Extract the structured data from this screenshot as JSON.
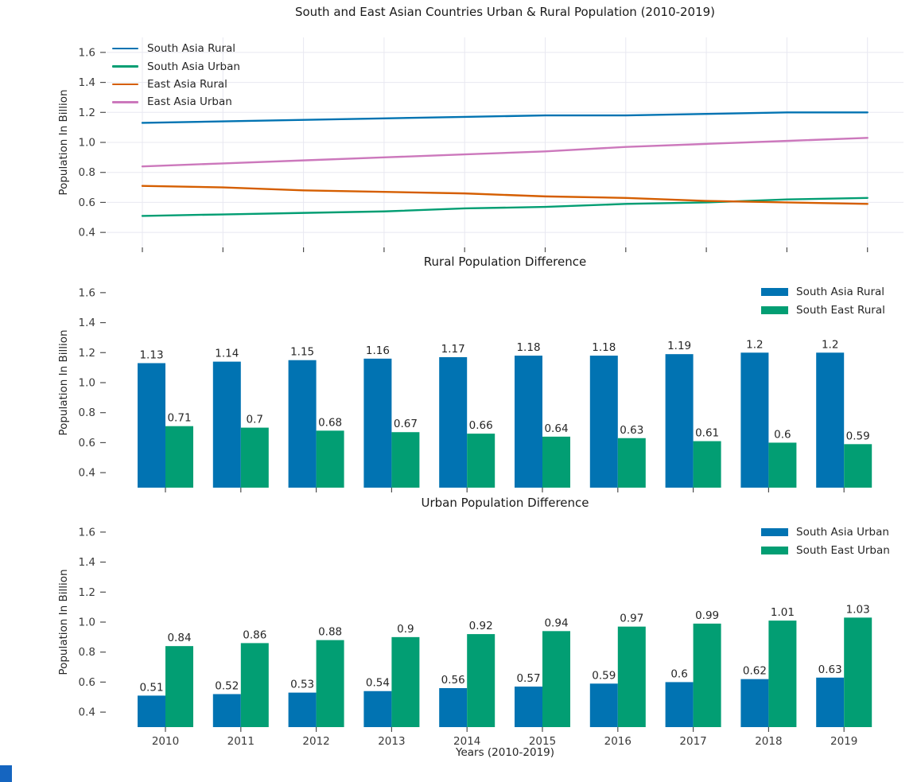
{
  "colors": {
    "blue": "#0173b2",
    "green": "#029e73",
    "orange": "#d55e00",
    "pink": "#cc78bc",
    "grid": "#e8e8f1",
    "tick": "#4d4d4d",
    "tick_label": "#3a3a3a",
    "text": "#262626",
    "corner_badge": "#1565c0"
  },
  "chart_data": [
    {
      "type": "line",
      "title": "South and East Asian Countries Urban & Rural Population (2010-2019)",
      "ylabel": "Population In Billion",
      "x": [
        2010,
        2011,
        2012,
        2013,
        2014,
        2015,
        2016,
        2017,
        2018,
        2019
      ],
      "ylim": [
        0.3,
        1.7
      ],
      "yticks": [
        0.4,
        0.6,
        0.8,
        1.0,
        1.2,
        1.4,
        1.6
      ],
      "grid": true,
      "legend_position": "upper-left",
      "series": [
        {
          "name": "South Asia Rural",
          "color_key": "blue",
          "values": [
            1.13,
            1.14,
            1.15,
            1.16,
            1.17,
            1.18,
            1.18,
            1.19,
            1.2,
            1.2
          ]
        },
        {
          "name": "South Asia Urban",
          "color_key": "green",
          "values": [
            0.51,
            0.52,
            0.53,
            0.54,
            0.56,
            0.57,
            0.59,
            0.6,
            0.62,
            0.63
          ]
        },
        {
          "name": "East Asia Rural",
          "color_key": "orange",
          "values": [
            0.71,
            0.7,
            0.68,
            0.67,
            0.66,
            0.64,
            0.63,
            0.61,
            0.6,
            0.59
          ]
        },
        {
          "name": "East Asia Urban",
          "color_key": "pink",
          "values": [
            0.84,
            0.86,
            0.88,
            0.9,
            0.92,
            0.94,
            0.97,
            0.99,
            1.01,
            1.03
          ]
        }
      ]
    },
    {
      "type": "bar",
      "title": "Rural Population Difference",
      "ylabel": "Population In Billion",
      "x": [
        2010,
        2011,
        2012,
        2013,
        2014,
        2015,
        2016,
        2017,
        2018,
        2019
      ],
      "ylim": [
        0.3,
        1.7
      ],
      "yticks": [
        0.4,
        0.6,
        0.8,
        1.0,
        1.2,
        1.4,
        1.6
      ],
      "grid": false,
      "bar_labels": true,
      "legend_position": "upper-right",
      "series": [
        {
          "name": "South Asia Rural",
          "color_key": "blue",
          "values": [
            1.13,
            1.14,
            1.15,
            1.16,
            1.17,
            1.18,
            1.18,
            1.19,
            1.2,
            1.2
          ]
        },
        {
          "name": "South East Rural",
          "color_key": "green",
          "values": [
            0.71,
            0.7,
            0.68,
            0.67,
            0.66,
            0.64,
            0.63,
            0.61,
            0.6,
            0.59
          ]
        }
      ]
    },
    {
      "type": "bar",
      "title": "Urban Population Difference",
      "ylabel": "Population In Billion",
      "xlabel": "Years (2010-2019)",
      "x": [
        2010,
        2011,
        2012,
        2013,
        2014,
        2015,
        2016,
        2017,
        2018,
        2019
      ],
      "xticklabels": [
        "2010",
        "2011",
        "2012",
        "2013",
        "2014",
        "2015",
        "2016",
        "2017",
        "2018",
        "2019"
      ],
      "ylim": [
        0.3,
        1.7
      ],
      "yticks": [
        0.4,
        0.6,
        0.8,
        1.0,
        1.2,
        1.4,
        1.6
      ],
      "grid": false,
      "bar_labels": true,
      "legend_position": "upper-right",
      "series": [
        {
          "name": "South Asia Urban",
          "color_key": "blue",
          "values": [
            0.51,
            0.52,
            0.53,
            0.54,
            0.56,
            0.57,
            0.59,
            0.6,
            0.62,
            0.63
          ]
        },
        {
          "name": "South East Urban",
          "color_key": "green",
          "values": [
            0.84,
            0.86,
            0.88,
            0.9,
            0.92,
            0.94,
            0.97,
            0.99,
            1.01,
            1.03
          ]
        }
      ]
    }
  ]
}
